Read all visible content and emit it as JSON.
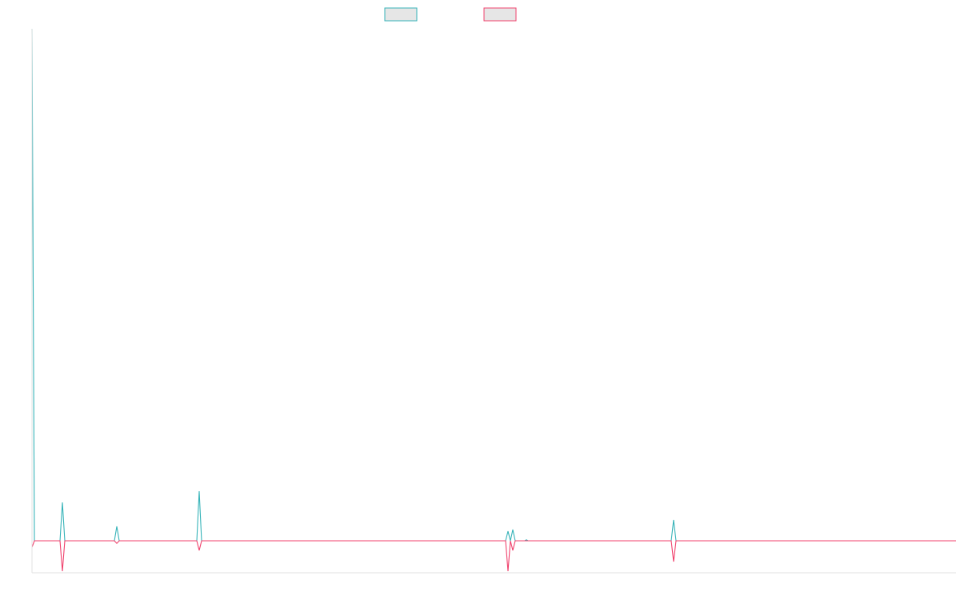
{
  "chart_data": {
    "type": "line",
    "title": "",
    "xlabel": "",
    "ylabel": "",
    "legend": {
      "placement": "top-center",
      "fill_color": "#e6e6e6"
    },
    "grid": false,
    "x_range": [
      0,
      1155
    ],
    "ylim": [
      -100,
      1600
    ],
    "series": [
      {
        "name": "",
        "color": "#36b3b8",
        "points": [
          [
            0,
            1600
          ],
          [
            3,
            0
          ],
          [
            35,
            0
          ],
          [
            38,
            120
          ],
          [
            41,
            0
          ],
          [
            103,
            0
          ],
          [
            106,
            45
          ],
          [
            109,
            0
          ],
          [
            206,
            0
          ],
          [
            209,
            155
          ],
          [
            212,
            0
          ],
          [
            592,
            0
          ],
          [
            595,
            30
          ],
          [
            598,
            0
          ],
          [
            601,
            35
          ],
          [
            604,
            0
          ],
          [
            616,
            0
          ],
          [
            618,
            3
          ],
          [
            620,
            0
          ],
          [
            799,
            0
          ],
          [
            802,
            65
          ],
          [
            805,
            0
          ],
          [
            1155,
            0
          ]
        ]
      },
      {
        "name": "",
        "color": "#f0416c",
        "points": [
          [
            0,
            -20
          ],
          [
            3,
            0
          ],
          [
            35,
            0
          ],
          [
            38,
            -95
          ],
          [
            41,
            0
          ],
          [
            103,
            0
          ],
          [
            106,
            -8
          ],
          [
            109,
            0
          ],
          [
            206,
            0
          ],
          [
            209,
            -30
          ],
          [
            212,
            0
          ],
          [
            592,
            0
          ],
          [
            595,
            -95
          ],
          [
            598,
            0
          ],
          [
            601,
            -30
          ],
          [
            604,
            0
          ],
          [
            799,
            0
          ],
          [
            802,
            -65
          ],
          [
            805,
            0
          ],
          [
            1155,
            0
          ]
        ]
      }
    ]
  }
}
